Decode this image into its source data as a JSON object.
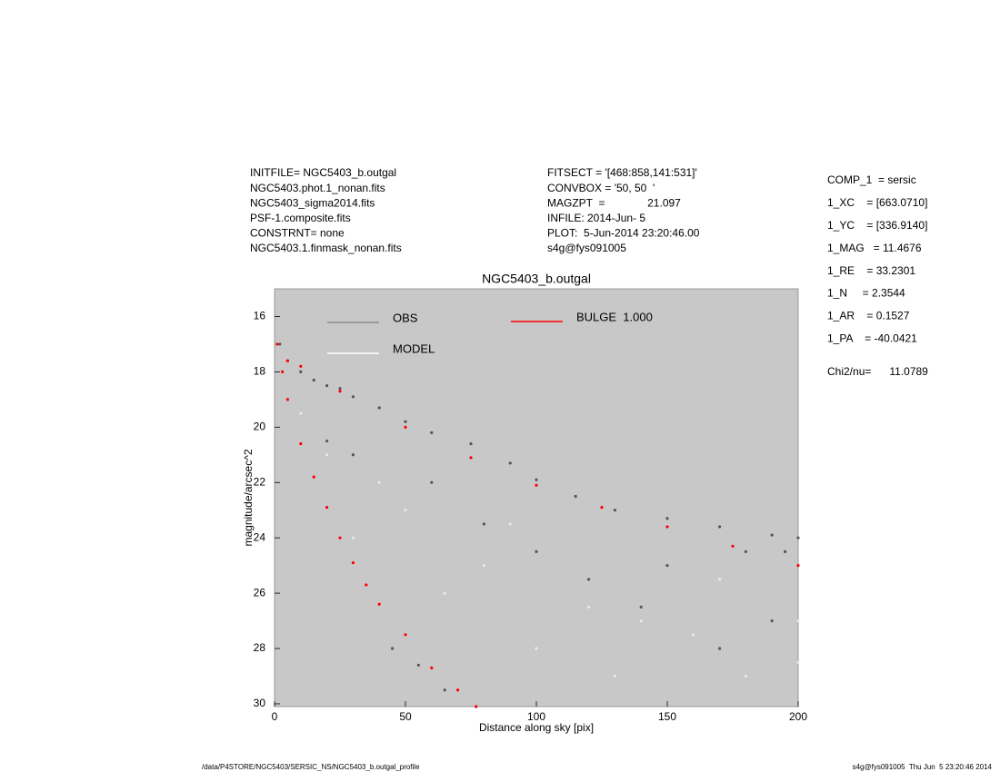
{
  "chart_data": {
    "type": "scatter",
    "title": "NGC5403_b.outgal",
    "x_label": "Distance along sky [pix]",
    "y_label": "magnitude/arcsec^2",
    "xlim": [
      0,
      200
    ],
    "xticks": [
      0,
      50,
      100,
      150,
      200
    ],
    "ylim": [
      15,
      30.1
    ],
    "yticks": [
      16,
      18,
      20,
      22,
      24,
      26,
      28,
      30
    ],
    "y_inverted": true,
    "background": "#c8c8c8",
    "header_left": [
      "INITFILE= NGC5403_b.outgal",
      "NGC5403.phot.1_nonan.fits",
      "NGC5403_sigma2014.fits",
      "PSF-1.composite.fits",
      "CONSTRNT= none",
      "NGC5403.1.finmask_nonan.fits"
    ],
    "header_middle": [
      "FITSECT = '[468:858,141:531]'",
      "CONVBOX = '50, 50  '",
      "MAGZPT  =              21.097",
      "INFILE: 2014-Jun- 5",
      "PLOT:  5-Jun-2014 23:20:46.00",
      "s4g@fys091005"
    ],
    "parameters": [
      "COMP_1  = sersic",
      "1_XC    = [663.0710]",
      "1_YC    = [336.9140]",
      "1_MAG   = 11.4676",
      "1_RE    = 33.2301",
      "1_N     = 2.3544",
      "1_AR    = 0.1527",
      "1_PA    = -40.0421"
    ],
    "fit_statistic": "Chi2/nu=      11.0789",
    "footer_left": "/data/P4STORE/NGC5403/SERSIC_NS/NGC5403_b.outgal_profile",
    "footer_right": "s4g@fys091005  Thu Jun  5 23:20:46 2014",
    "series": [
      {
        "name": "OBS",
        "color": "#555555",
        "legend_color": "#8c8c8c",
        "x": [
          2,
          5,
          10,
          15,
          20,
          25,
          30,
          40,
          50,
          60,
          75,
          90,
          100,
          115,
          130,
          150,
          170,
          190,
          200,
          30,
          60,
          80,
          100,
          120,
          150,
          180,
          190,
          45,
          55,
          65,
          20,
          140,
          170,
          195
        ],
        "y": [
          17.0,
          17.6,
          18.0,
          18.3,
          18.5,
          18.6,
          18.9,
          19.3,
          19.8,
          20.2,
          20.6,
          21.3,
          21.9,
          22.5,
          23.0,
          23.3,
          23.6,
          23.9,
          24.0,
          21.0,
          22.0,
          23.5,
          24.5,
          25.5,
          25.0,
          24.5,
          27.0,
          28.0,
          28.6,
          29.5,
          20.5,
          26.5,
          28.0,
          24.5
        ]
      },
      {
        "name": "MODEL",
        "color": "#f0e6e6",
        "legend_color": "#ffffff",
        "x": [
          10,
          20,
          30,
          50,
          65,
          80,
          100,
          120,
          140,
          160,
          180,
          200,
          40,
          90,
          130,
          170,
          200
        ],
        "y": [
          19.5,
          21.0,
          24.0,
          23.0,
          26.0,
          25.0,
          28.0,
          26.5,
          27.0,
          27.5,
          29.0,
          28.5,
          22.0,
          23.5,
          29.0,
          25.5,
          27.0
        ]
      },
      {
        "name": "BULGE  1.000",
        "color": "#ff0000",
        "legend_color": "#ff0000",
        "x": [
          1,
          3,
          5,
          10,
          15,
          20,
          25,
          30,
          35,
          40,
          50,
          60,
          70,
          77,
          5,
          10,
          25,
          50,
          75,
          100,
          125,
          150,
          175,
          200
        ],
        "y": [
          17.0,
          18.0,
          19.0,
          20.6,
          21.8,
          22.9,
          24.0,
          24.9,
          25.7,
          26.4,
          27.5,
          28.7,
          29.5,
          30.1,
          17.6,
          17.8,
          18.7,
          20.0,
          21.1,
          22.1,
          22.9,
          23.6,
          24.3,
          25.0
        ]
      }
    ]
  }
}
